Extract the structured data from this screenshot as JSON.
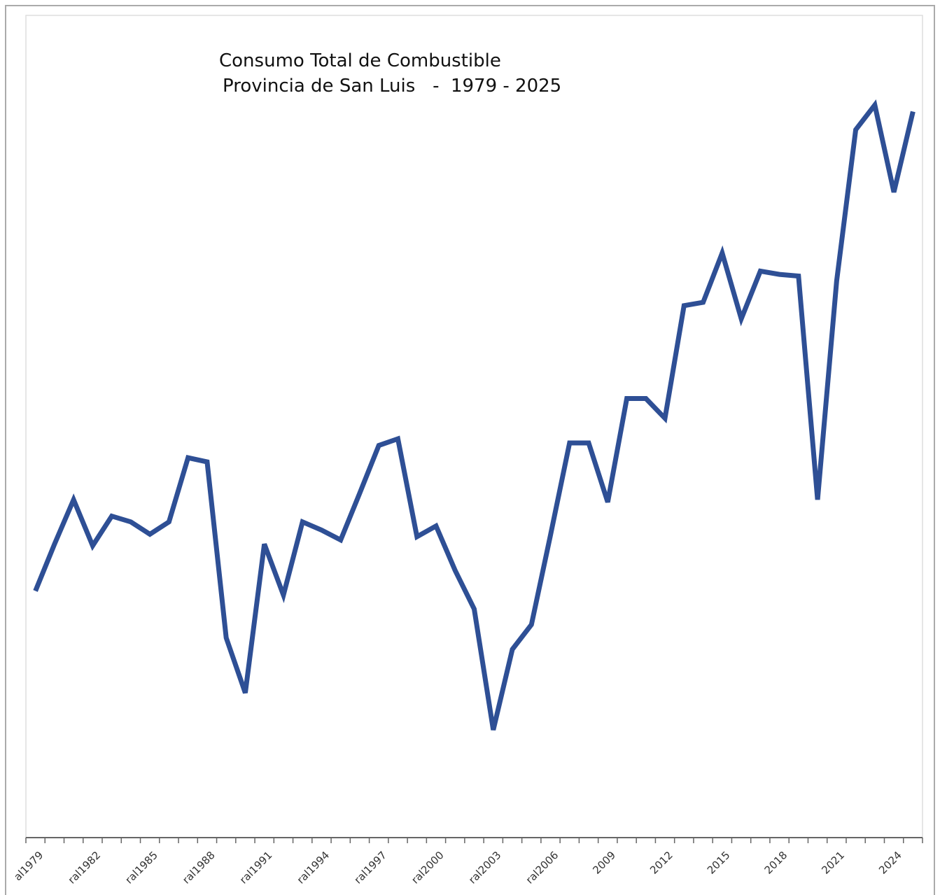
{
  "chart_data": {
    "type": "line",
    "title": "Consumo Total de Combustible",
    "subtitle": "Provincia de San Luis   -  1979 - 2025",
    "categories": [
      "al1979",
      null,
      null,
      "ral1982",
      null,
      null,
      "ral1985",
      null,
      null,
      "ral1988",
      null,
      null,
      "ral1991",
      null,
      null,
      "ral1994",
      null,
      null,
      "ral1997",
      null,
      null,
      "ral2000",
      null,
      null,
      "ral2003",
      null,
      null,
      "ral2006",
      null,
      null,
      "2009",
      null,
      null,
      "2012",
      null,
      null,
      "2015",
      null,
      null,
      "2018",
      null,
      null,
      "2021",
      null,
      null,
      "2024",
      null
    ],
    "series": [
      {
        "name": "Consumo Total",
        "color": "#2e4f95",
        "values": [
          30.0,
          35.7,
          41.1,
          35.5,
          39.1,
          38.4,
          36.9,
          38.4,
          46.2,
          45.7,
          24.3,
          17.6,
          35.7,
          29.5,
          38.4,
          37.4,
          36.2,
          41.9,
          47.7,
          48.5,
          36.6,
          37.9,
          32.5,
          27.8,
          13.1,
          22.9,
          25.9,
          36.8,
          48.0,
          48.0,
          40.8,
          53.4,
          53.4,
          51.0,
          64.7,
          65.1,
          71.1,
          63.1,
          68.9,
          68.5,
          68.3,
          41.1,
          67.7,
          86.1,
          89.1,
          78.5,
          88.3
        ]
      }
    ],
    "ylim": [
      0,
      100
    ],
    "grid": false,
    "legend": false
  }
}
